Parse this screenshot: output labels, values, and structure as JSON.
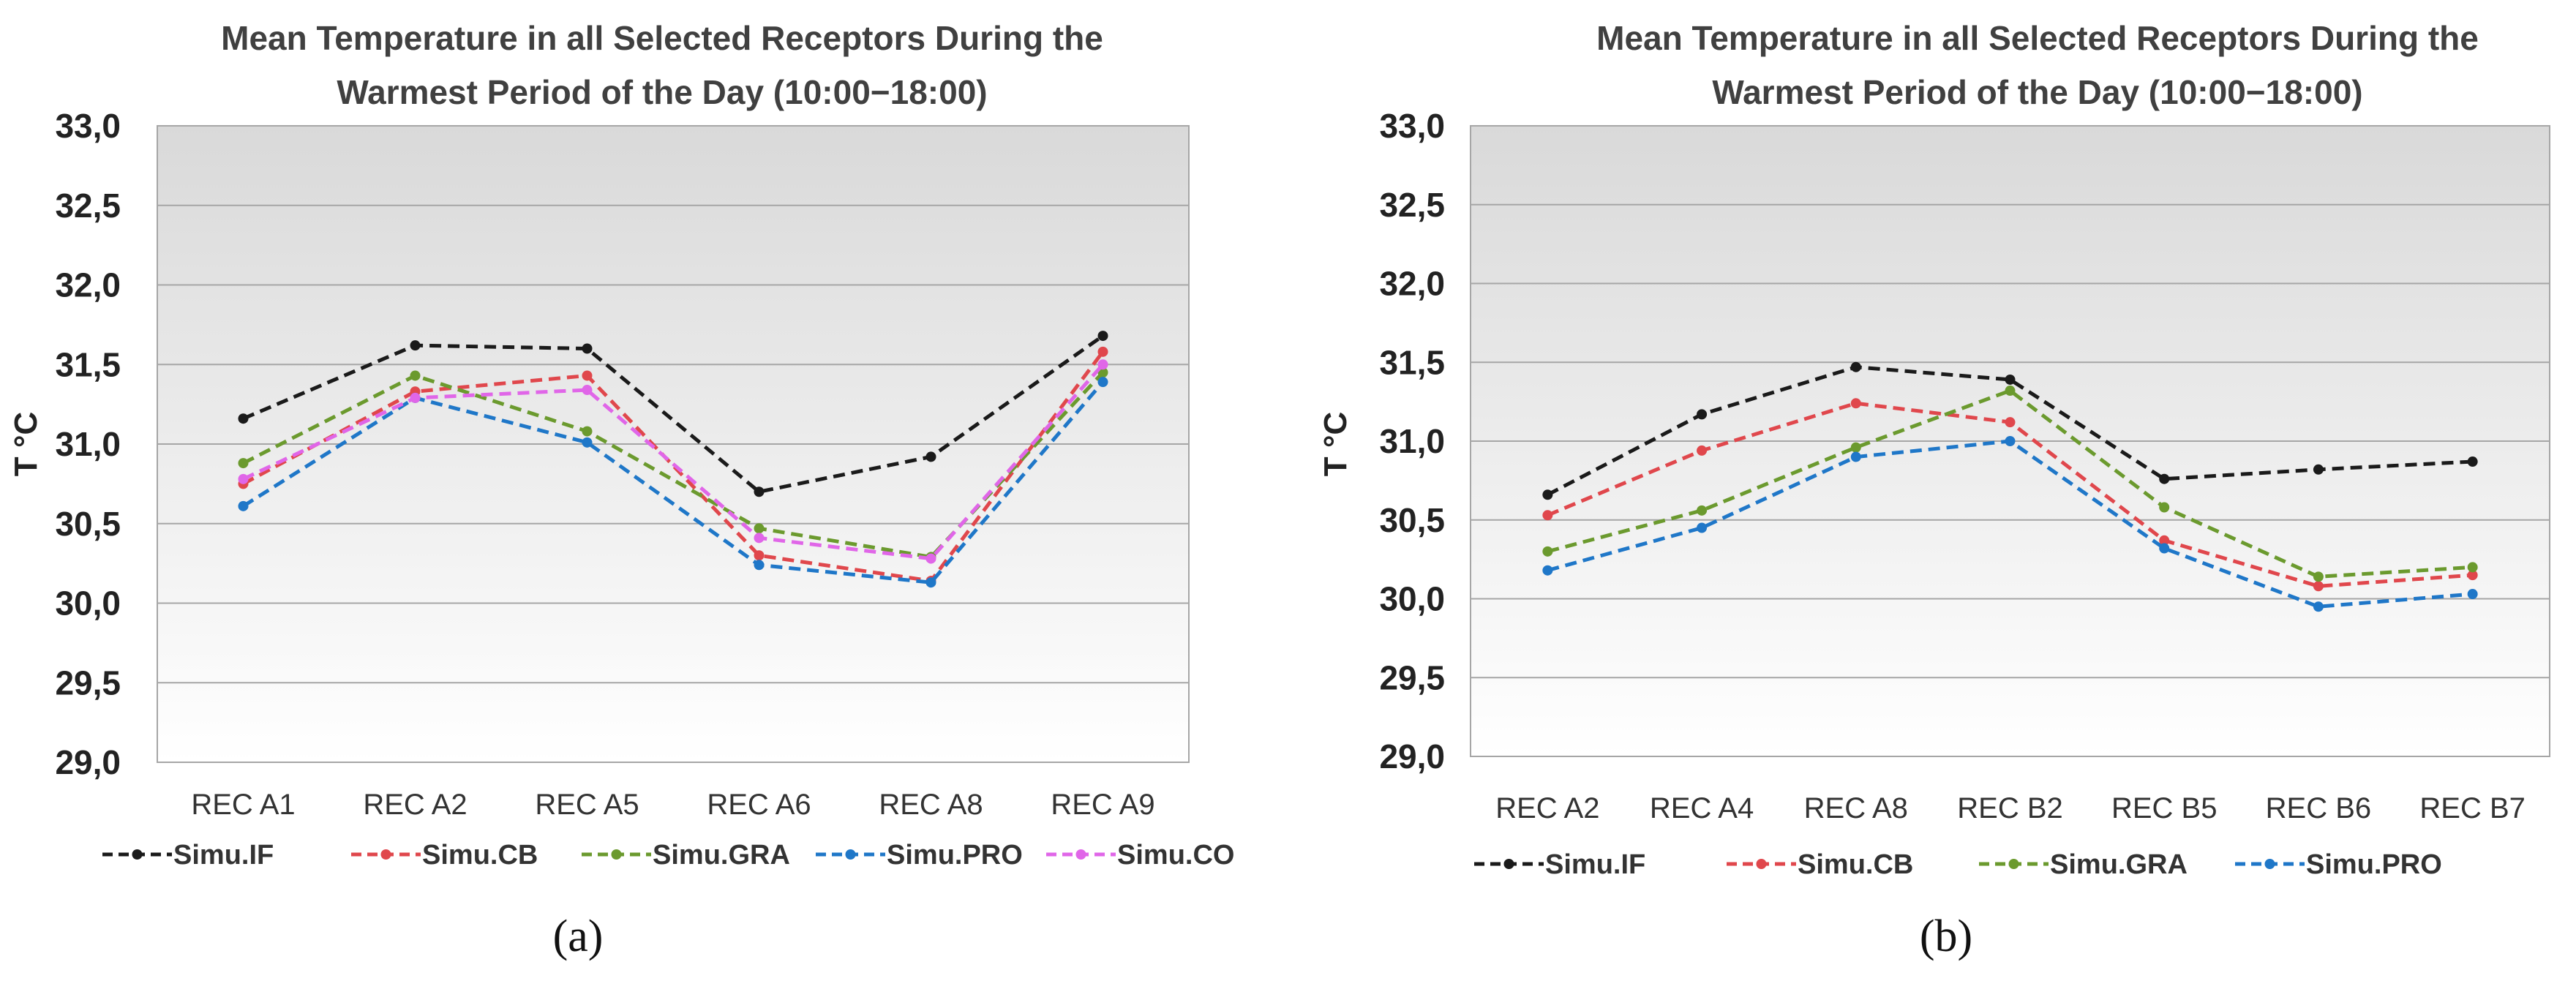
{
  "chart_data": [
    {
      "type": "line",
      "title": "Mean Temperature  in all Selected Receptors During the Warmest Period of the Day (10:00−18:00)",
      "title_lines": [
        "Mean Temperature  in all Selected Receptors During the",
        "Warmest Period of the Day (10:00−18:00)"
      ],
      "ylabel": "T °C",
      "xlabel": "",
      "ylim": [
        29.0,
        33.0
      ],
      "yticks": [
        "29,0",
        "29,5",
        "30,0",
        "30,5",
        "31,0",
        "31,5",
        "32,0",
        "32,5",
        "33,0"
      ],
      "categories": [
        "REC A1",
        "REC A2",
        "REC A5",
        "REC A6",
        "REC A8",
        "REC A9"
      ],
      "grid": true,
      "legend_position": "bottom",
      "panel_label": "(a)",
      "series": [
        {
          "name": "Simu.IF",
          "color": "#1a1a1a",
          "values": [
            31.16,
            31.62,
            31.6,
            30.7,
            30.92,
            31.68
          ]
        },
        {
          "name": "Simu.CB",
          "color": "#e0474c",
          "values": [
            30.75,
            31.33,
            31.43,
            30.3,
            30.14,
            31.58
          ]
        },
        {
          "name": "Simu.GRA",
          "color": "#6b9a2e",
          "values": [
            30.88,
            31.43,
            31.08,
            30.47,
            30.29,
            31.45
          ]
        },
        {
          "name": "Simu.PRO",
          "color": "#1f77c8",
          "values": [
            30.61,
            31.29,
            31.01,
            30.24,
            30.13,
            31.39
          ]
        },
        {
          "name": "Simu.CO",
          "color": "#e066e8",
          "values": [
            30.78,
            31.29,
            31.34,
            30.41,
            30.28,
            31.5
          ]
        }
      ]
    },
    {
      "type": "line",
      "title": "Mean Temperature  in all Selected Receptors During the Warmest Period of the Day (10:00−18:00)",
      "title_lines": [
        "Mean Temperature  in all Selected Receptors During the",
        "Warmest Period of the Day (10:00−18:00)"
      ],
      "ylabel": "T °C",
      "xlabel": "",
      "ylim": [
        29.0,
        33.0
      ],
      "yticks": [
        "29,0",
        "29,5",
        "30,0",
        "30,5",
        "31,0",
        "31,5",
        "32,0",
        "32,5",
        "33,0"
      ],
      "categories": [
        "REC A2",
        "REC A4",
        "REC A8",
        "REC B2",
        "REC B5",
        "REC B6",
        "REC B7"
      ],
      "grid": true,
      "legend_position": "bottom",
      "panel_label": "(b)",
      "series": [
        {
          "name": "Simu.IF",
          "color": "#1a1a1a",
          "values": [
            30.66,
            31.17,
            31.47,
            31.39,
            30.76,
            30.82,
            30.87
          ]
        },
        {
          "name": "Simu.CB",
          "color": "#e0474c",
          "values": [
            30.53,
            30.94,
            31.24,
            31.12,
            30.37,
            30.08,
            30.15
          ]
        },
        {
          "name": "Simu.GRA",
          "color": "#6b9a2e",
          "values": [
            30.3,
            30.56,
            30.96,
            31.32,
            30.58,
            30.14,
            30.2
          ]
        },
        {
          "name": "Simu.PRO",
          "color": "#1f77c8",
          "values": [
            30.18,
            30.45,
            30.9,
            31.0,
            30.32,
            29.95,
            30.03
          ]
        }
      ]
    }
  ]
}
